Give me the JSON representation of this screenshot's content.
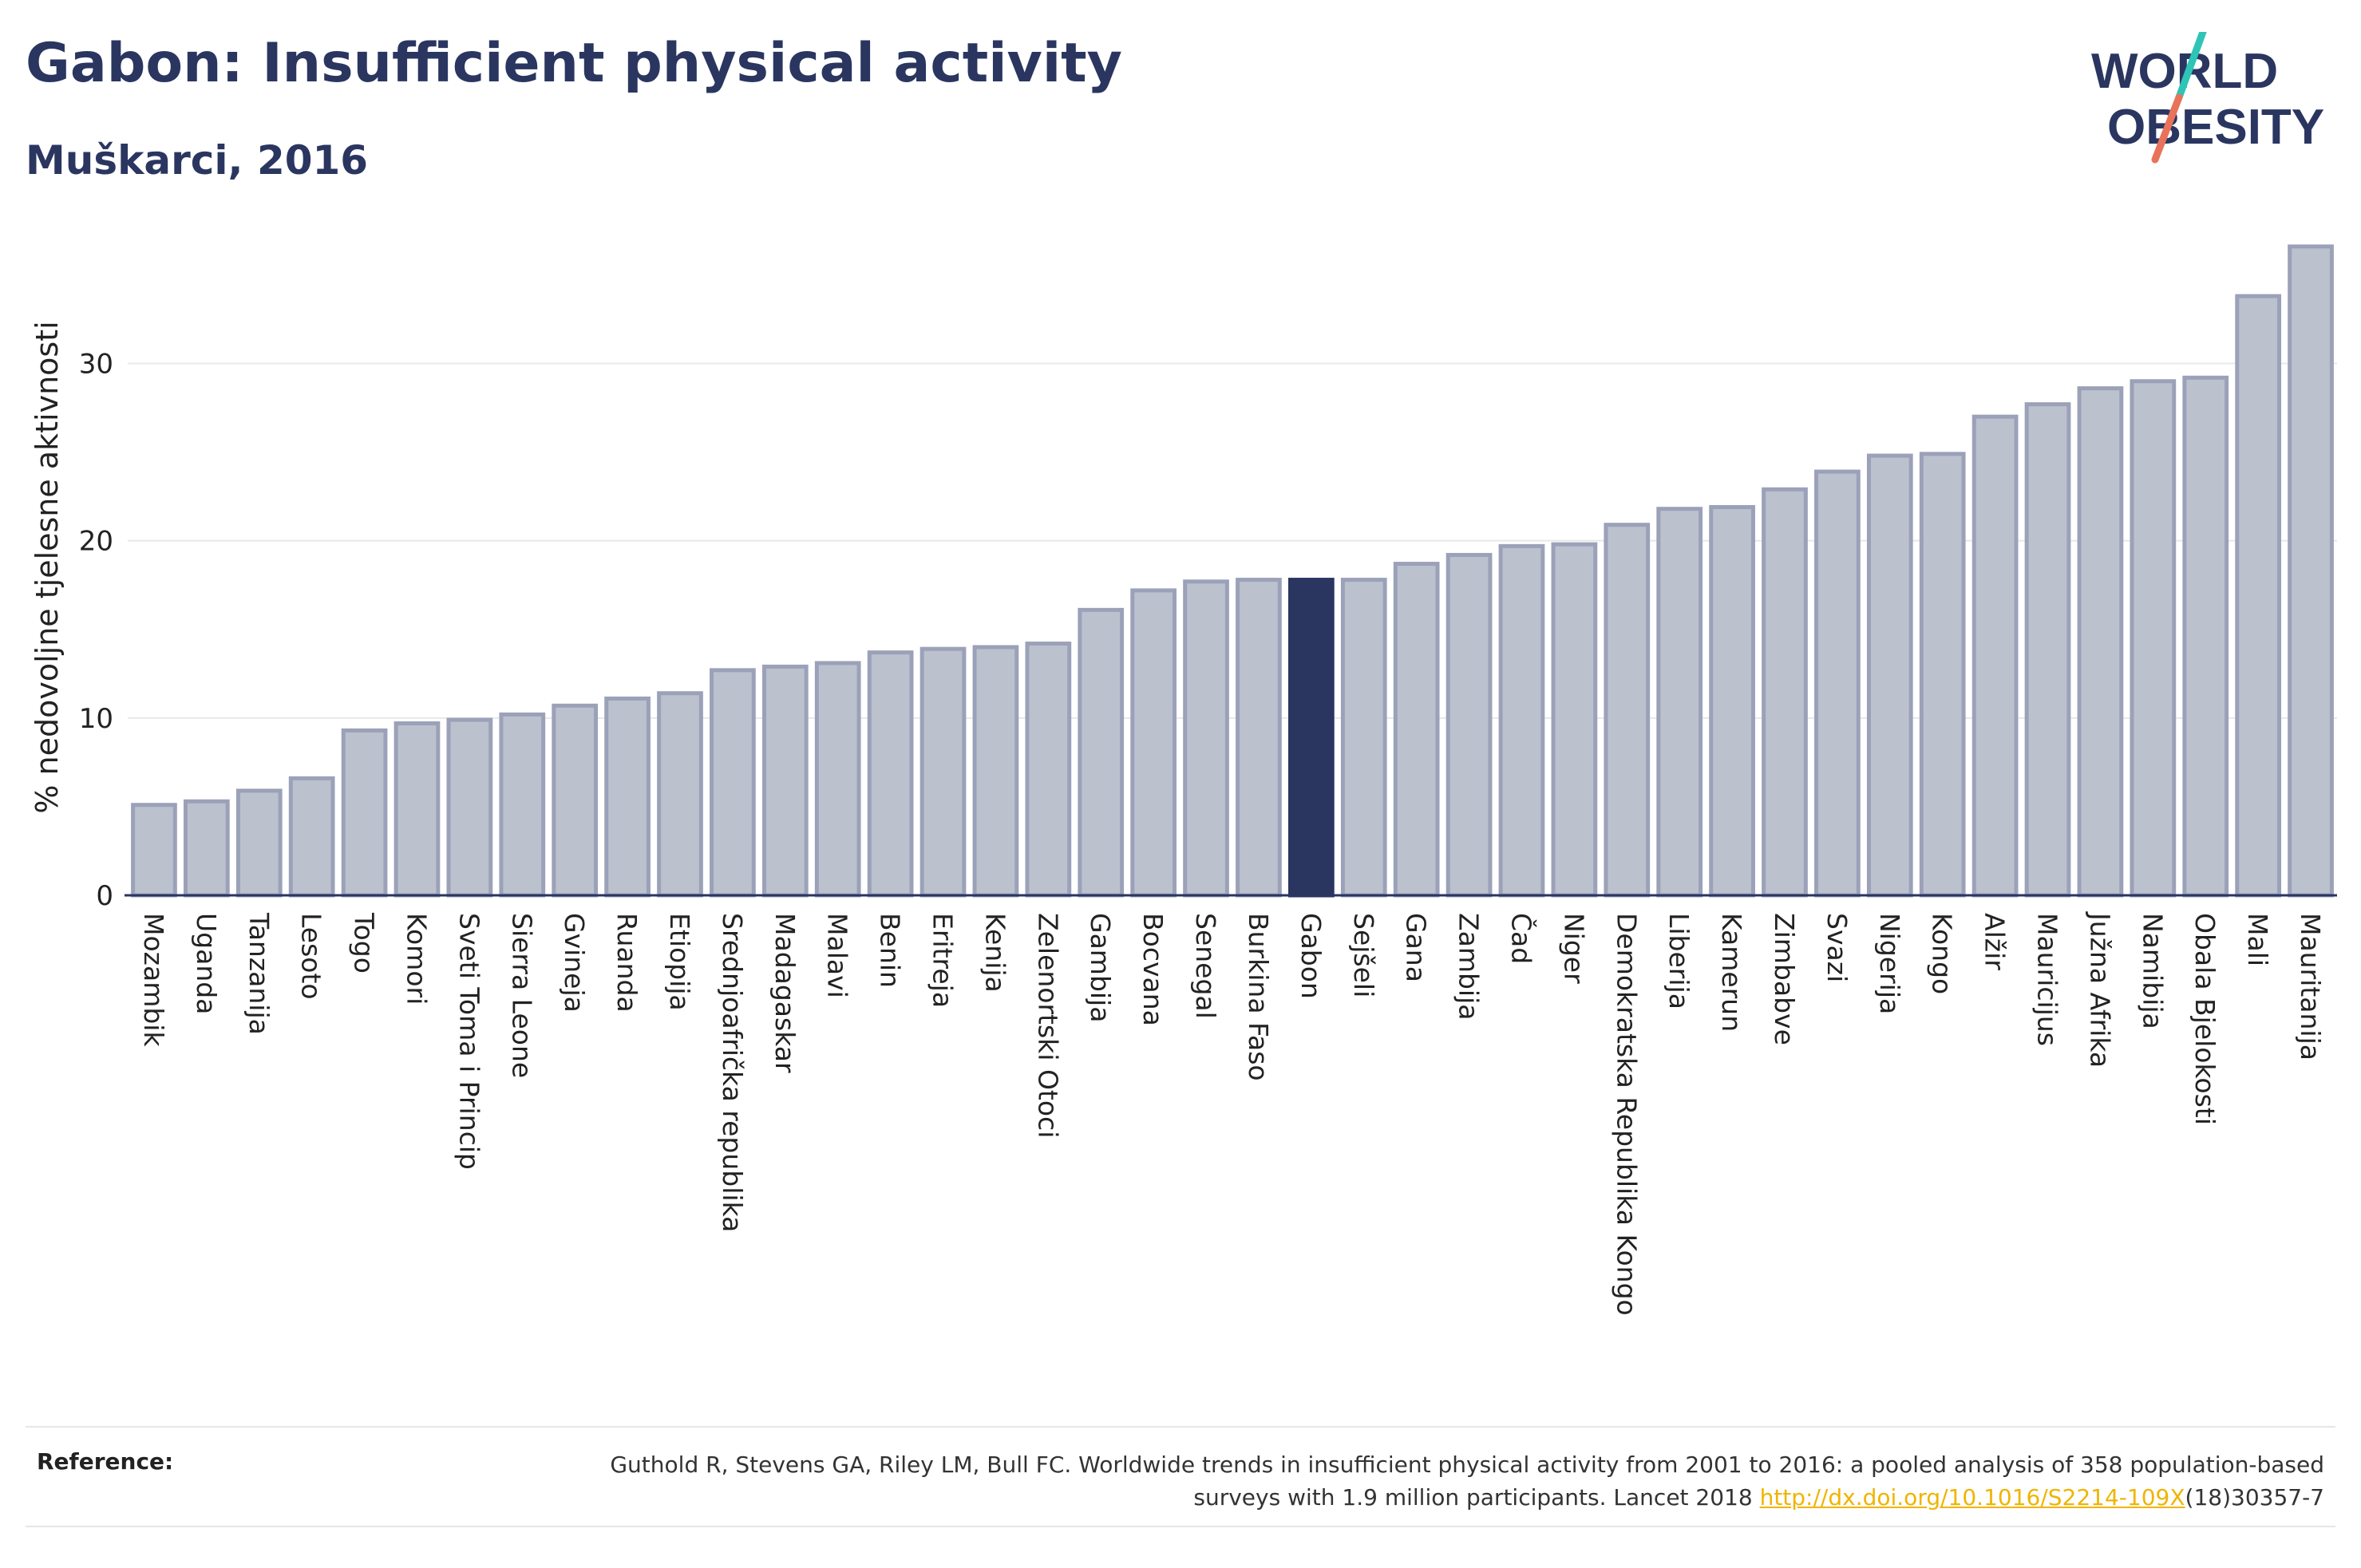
{
  "header": {
    "title": "Gabon: Insufficient physical activity",
    "subtitle": "Muškarci, 2016"
  },
  "logo": {
    "line1": "WORLD",
    "line2": "OBESITY",
    "colors": {
      "text": "#2a3660",
      "slash_teal": "#2ec4b6",
      "slash_coral": "#e8735a"
    }
  },
  "chart_data": {
    "type": "bar",
    "ylabel": "% nedovoljne tjelesne aktivnosti",
    "xlabel": "",
    "ylim": [
      0,
      37
    ],
    "yticks": [
      0,
      10,
      20,
      30
    ],
    "grid": true,
    "highlight": "Gabon",
    "colors": {
      "bar": "#bcc1ce",
      "bar_border": "#9ba1b8",
      "highlight": "#2a3660",
      "grid": "#e8e8e8",
      "axis": "#2a3660"
    },
    "categories": [
      "Mozambik",
      "Uganda",
      "Tanzanija",
      "Lesoto",
      "Togo",
      "Komori",
      "Sveti Toma i Princip",
      "Sierra Leone",
      "Gvineja",
      "Ruanda",
      "Etiopija",
      "Srednjoafrička republika",
      "Madagaskar",
      "Malavi",
      "Benin",
      "Eritreja",
      "Kenija",
      "Zelenortski Otoci",
      "Gambija",
      "Bocvana",
      "Senegal",
      "Burkina Faso",
      "Gabon",
      "Sejšeli",
      "Gana",
      "Zambija",
      "Čad",
      "Niger",
      "Demokratska Republika Kongo",
      "Liberija",
      "Kamerun",
      "Zimbabve",
      "Svazi",
      "Nigerija",
      "Kongo",
      "Alžir",
      "Mauricijus",
      "Južna Afrika",
      "Namibija",
      "Obala Bjelokosti",
      "Mali",
      "Mauritanija"
    ],
    "values": [
      5.1,
      5.3,
      5.9,
      6.6,
      9.3,
      9.7,
      9.9,
      10.2,
      10.7,
      11.1,
      11.4,
      12.7,
      12.9,
      13.1,
      13.7,
      13.9,
      14.0,
      14.2,
      16.1,
      17.2,
      17.7,
      17.8,
      17.8,
      17.8,
      18.7,
      19.2,
      19.7,
      19.8,
      20.9,
      21.8,
      21.9,
      22.9,
      23.9,
      24.8,
      24.9,
      27.0,
      27.7,
      28.6,
      29.0,
      29.2,
      33.8,
      36.6
    ]
  },
  "reference": {
    "label": "Reference:",
    "text1": "Guthold R, Stevens GA, Riley LM, Bull FC. Worldwide trends in insufficient physical activity from 2001 to 2016: a pooled analysis of 358 population-based surveys with 1.9 million participants. Lancet 2018 ",
    "link": "http://dx.doi.org/10.1016/S2214-109X",
    "text2": "(18)30357-7"
  }
}
